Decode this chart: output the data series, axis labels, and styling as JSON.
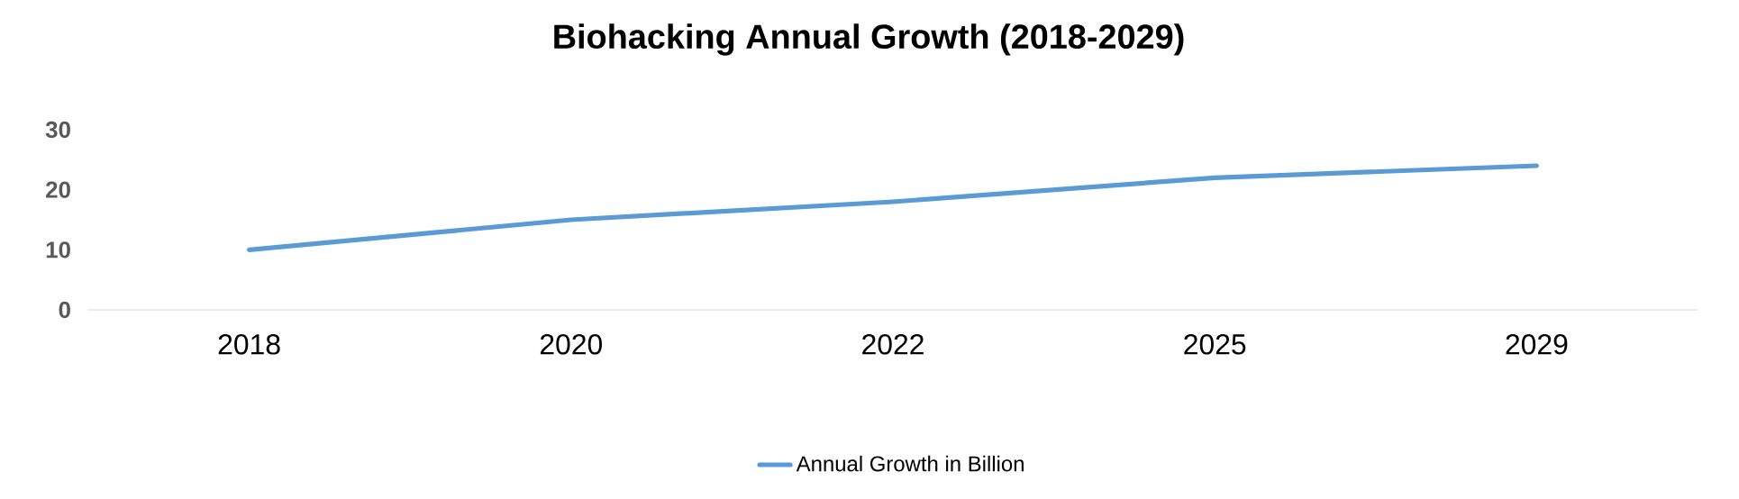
{
  "chart_data": {
    "type": "line",
    "title": "Biohacking Annual Growth (2018-2029)",
    "categories": [
      "2018",
      "2020",
      "2022",
      "2025",
      "2029"
    ],
    "series": [
      {
        "name": "Annual Growth in Billion",
        "color": "#5b9bd5",
        "values": [
          10,
          15,
          18,
          22,
          24
        ]
      }
    ],
    "ylim": [
      0,
      30
    ],
    "yticks": [
      0,
      10,
      20,
      30
    ],
    "legend": "bottom",
    "grid": false,
    "marker": "none",
    "line_style": "solid"
  }
}
